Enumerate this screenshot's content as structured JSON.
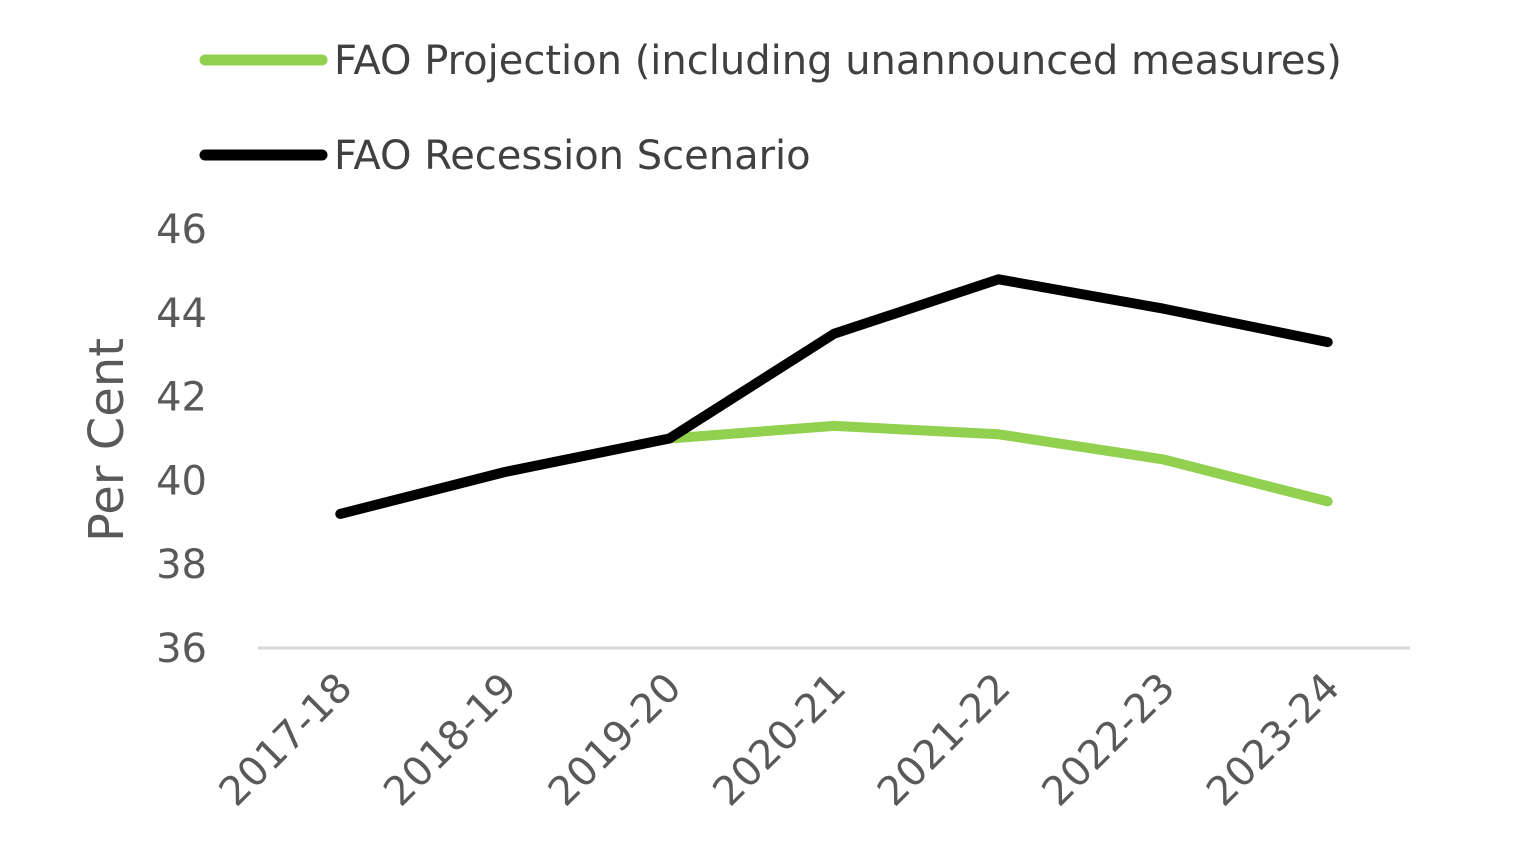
{
  "chart_data": {
    "type": "line",
    "title": "",
    "xlabel": "",
    "ylabel": "Per Cent",
    "categories": [
      "2017-18",
      "2018-19",
      "2019-20",
      "2020-21",
      "2021-22",
      "2022-23",
      "2023-24"
    ],
    "y_ticks": [
      "46",
      "44",
      "42",
      "40",
      "38",
      "36"
    ],
    "ylim": [
      36,
      46
    ],
    "grid": false,
    "legend_position": "top-left",
    "series": [
      {
        "name": "FAO Projection (including unannounced measures)",
        "color": "#92d050",
        "values": [
          39.2,
          40.2,
          41.0,
          41.3,
          41.1,
          40.5,
          39.5
        ]
      },
      {
        "name": "FAO Recession Scenario",
        "color": "#000000",
        "values": [
          39.2,
          40.2,
          41.0,
          43.5,
          44.8,
          44.1,
          43.3
        ]
      }
    ]
  }
}
